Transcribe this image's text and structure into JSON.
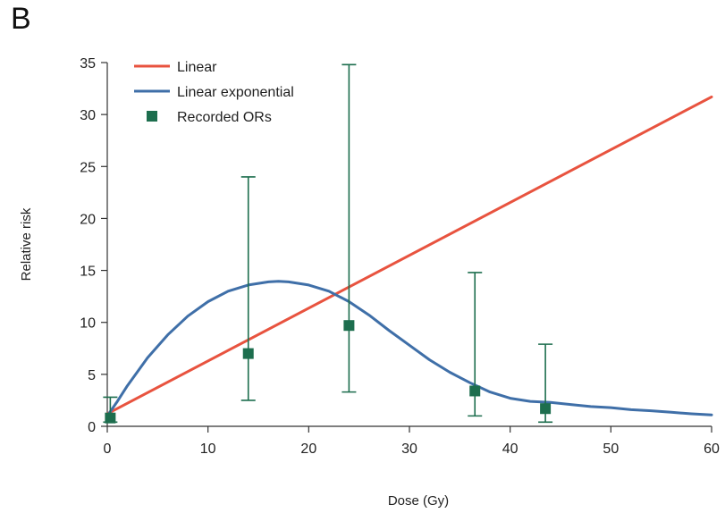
{
  "panel_label": "B",
  "chart_data": {
    "type": "line",
    "title": "",
    "xlabel": "Dose (Gy)",
    "ylabel": "Relative risk",
    "xlim": [
      0,
      60
    ],
    "ylim": [
      0,
      35
    ],
    "x_ticks": [
      0,
      10,
      20,
      30,
      40,
      50,
      60
    ],
    "y_ticks": [
      0,
      5,
      10,
      15,
      20,
      25,
      30,
      35
    ],
    "legend_position": "top-left",
    "series": [
      {
        "name": "Linear",
        "kind": "line",
        "color": "#e8533f",
        "x": [
          0,
          60
        ],
        "y": [
          1.2,
          31.7
        ]
      },
      {
        "name": "Linear exponential",
        "kind": "line",
        "color": "#3f6fa8",
        "x": [
          0,
          1,
          2,
          4,
          6,
          8,
          10,
          12,
          14,
          16,
          17,
          18,
          20,
          22,
          24,
          26,
          28,
          30,
          32,
          34,
          36,
          38,
          40,
          42,
          44,
          46,
          48,
          50,
          52,
          54,
          56,
          58,
          60
        ],
        "y": [
          1.0,
          2.4,
          3.9,
          6.6,
          8.8,
          10.6,
          12.0,
          13.0,
          13.6,
          13.9,
          13.95,
          13.9,
          13.6,
          13.0,
          12.0,
          10.7,
          9.2,
          7.8,
          6.4,
          5.2,
          4.2,
          3.3,
          2.7,
          2.4,
          2.3,
          2.1,
          1.9,
          1.8,
          1.6,
          1.5,
          1.35,
          1.2,
          1.1
        ]
      },
      {
        "name": "Recorded ORs",
        "kind": "points",
        "color": "#1d6e4e",
        "points": [
          {
            "x": 0.3,
            "y": 0.8,
            "lo": 0.4,
            "hi": 2.8
          },
          {
            "x": 14,
            "y": 7.0,
            "lo": 2.5,
            "hi": 24.0
          },
          {
            "x": 24,
            "y": 9.7,
            "lo": 3.3,
            "hi": 34.8
          },
          {
            "x": 36.5,
            "y": 3.4,
            "lo": 1.0,
            "hi": 14.8
          },
          {
            "x": 43.5,
            "y": 1.7,
            "lo": 0.4,
            "hi": 7.9
          }
        ]
      }
    ]
  }
}
